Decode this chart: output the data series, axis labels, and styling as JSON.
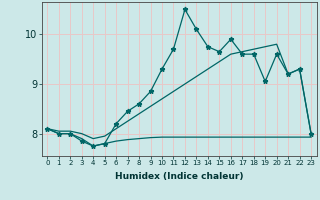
{
  "xlabel": "Humidex (Indice chaleur)",
  "background_color": "#cce8e8",
  "grid_color": "#e8c8c8",
  "line_color": "#006666",
  "xlim": [
    -0.5,
    23.5
  ],
  "ylim": [
    7.55,
    10.65
  ],
  "xticks": [
    0,
    1,
    2,
    3,
    4,
    5,
    6,
    7,
    8,
    9,
    10,
    11,
    12,
    13,
    14,
    15,
    16,
    17,
    18,
    19,
    20,
    21,
    22,
    23
  ],
  "yticks": [
    8,
    9,
    10
  ],
  "series1_x": [
    0,
    1,
    2,
    3,
    4,
    5,
    6,
    7,
    8,
    9,
    10,
    11,
    12,
    13,
    14,
    15,
    16,
    17,
    18,
    19,
    20,
    21,
    22,
    23
  ],
  "series1_y": [
    8.1,
    8.0,
    8.0,
    7.85,
    7.75,
    7.8,
    8.2,
    8.45,
    8.6,
    8.85,
    9.3,
    9.7,
    10.5,
    10.1,
    9.75,
    9.65,
    9.9,
    9.6,
    9.6,
    9.05,
    9.6,
    9.2,
    9.3,
    8.0
  ],
  "series2_x": [
    0,
    1,
    2,
    3,
    4,
    5,
    6,
    7,
    8,
    9,
    10,
    11,
    12,
    13,
    14,
    15,
    16,
    17,
    18,
    19,
    20,
    21,
    22,
    23
  ],
  "series2_y": [
    8.1,
    8.05,
    8.05,
    8.0,
    7.9,
    7.95,
    8.1,
    8.25,
    8.4,
    8.55,
    8.7,
    8.85,
    9.0,
    9.15,
    9.3,
    9.45,
    9.6,
    9.65,
    9.7,
    9.75,
    9.8,
    9.2,
    9.3,
    8.0
  ],
  "series3_x": [
    0,
    1,
    2,
    3,
    4,
    5,
    6,
    7,
    8,
    9,
    10,
    11,
    12,
    13,
    14,
    15,
    16,
    17,
    18,
    19,
    20,
    21,
    22,
    23
  ],
  "series3_y": [
    8.1,
    8.0,
    8.0,
    7.9,
    7.75,
    7.8,
    7.85,
    7.88,
    7.9,
    7.92,
    7.93,
    7.93,
    7.93,
    7.93,
    7.93,
    7.93,
    7.93,
    7.93,
    7.93,
    7.93,
    7.93,
    7.93,
    7.93,
    7.93
  ]
}
